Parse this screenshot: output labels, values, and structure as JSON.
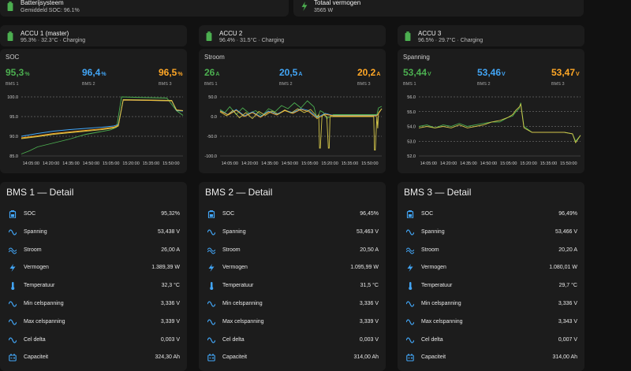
{
  "colors": {
    "bms1": "#4caf50",
    "bms2": "#42a5f5",
    "bms3": "#ffa726",
    "accent_green": "#4caf50",
    "icon_blue": "#42a5f5",
    "card": "#1c1c1c",
    "bg": "#111111",
    "yellow": "#d4c64a"
  },
  "top": {
    "system": {
      "title": "Batterijsysteem",
      "sub": "Gemiddeld SOC: 96.1%",
      "icon": "battery-icon"
    },
    "power": {
      "title": "Totaal vermogen",
      "sub": "3565 W",
      "icon": "lightning-icon"
    }
  },
  "accus": [
    {
      "title": "ACCU 1 (master)",
      "sub": "95.3% · 32.3°C · Charging",
      "icon": "battery-charging-icon"
    },
    {
      "title": "ACCU 2",
      "sub": "96.4% · 31.5°C · Charging",
      "icon": "battery-charging-icon"
    },
    {
      "title": "ACCU 3",
      "sub": "96.5% · 29.7°C · Charging",
      "icon": "battery-charging-icon"
    }
  ],
  "charts": [
    {
      "title": "SOC",
      "stats": [
        {
          "value": "95,3",
          "unit": "%",
          "label": "BMS 1"
        },
        {
          "value": "96,4",
          "unit": "%",
          "label": "BMS 2"
        },
        {
          "value": "96,5",
          "unit": "%",
          "label": "BMS 3"
        }
      ]
    },
    {
      "title": "Stroom",
      "stats": [
        {
          "value": "26",
          "unit": "A",
          "label": "BMS 1"
        },
        {
          "value": "20,5",
          "unit": "A",
          "label": "BMS 2"
        },
        {
          "value": "20,2",
          "unit": "A",
          "label": "BMS 3"
        }
      ]
    },
    {
      "title": "Spanning",
      "stats": [
        {
          "value": "53,44",
          "unit": "V",
          "label": "BMS 1"
        },
        {
          "value": "53,46",
          "unit": "V",
          "label": "BMS 2"
        },
        {
          "value": "53,47",
          "unit": "V",
          "label": "BMS 3"
        }
      ]
    }
  ],
  "chart_data": [
    {
      "type": "line",
      "y_ticks": [
        "100.0",
        "95.0",
        "90.0",
        "85.0"
      ],
      "ylim": [
        85,
        100
      ],
      "x_ticks": [
        "14:05:00",
        "14:20:00",
        "14:35:00",
        "14:50:00",
        "15:05:00",
        "15:20:00",
        "15:35:00",
        "15:50:00"
      ],
      "series": [
        {
          "name": "BMS 1",
          "color": "#4caf50",
          "x": [
            0,
            0.05,
            0.1,
            0.2,
            0.3,
            0.4,
            0.55,
            0.59,
            0.62,
            0.7,
            0.8,
            0.9,
            0.96,
            1
          ],
          "y": [
            85.5,
            86.3,
            87.3,
            88.3,
            89.3,
            90.5,
            91.6,
            92.3,
            100,
            99.9,
            99.8,
            99.7,
            96.5,
            95.3
          ]
        },
        {
          "name": "BMS 2",
          "color": "#42a5f5",
          "x": [
            0,
            0.1,
            0.2,
            0.3,
            0.4,
            0.5,
            0.57,
            0.6,
            0.63,
            0.8,
            0.93,
            0.96,
            1
          ],
          "y": [
            90,
            90.7,
            91.3,
            91.7,
            92,
            92.3,
            92.6,
            93,
            99.2,
            99.1,
            99,
            96.5,
            96.4
          ]
        },
        {
          "name": "BMS 3",
          "color": "#ffa726",
          "x": [
            0,
            0.1,
            0.2,
            0.3,
            0.4,
            0.5,
            0.57,
            0.6,
            0.63,
            0.8,
            0.93,
            0.96,
            1
          ],
          "y": [
            89.6,
            90.1,
            90.7,
            91.1,
            91.5,
            91.9,
            92.3,
            92.8,
            99.2,
            99.1,
            99,
            96.7,
            96.5
          ]
        },
        {
          "name": "",
          "color": "#d4c64a",
          "x": [
            0,
            0.1,
            0.2,
            0.3,
            0.4,
            0.5,
            0.57,
            0.6,
            0.63,
            0.8,
            0.93,
            0.96,
            1
          ],
          "y": [
            89.4,
            89.9,
            90.5,
            90.9,
            91.3,
            91.7,
            92.1,
            92.6,
            99.3,
            99.2,
            99.1,
            96.6,
            96.5
          ]
        }
      ]
    },
    {
      "type": "line",
      "y_ticks": [
        "50.0",
        "0.0",
        "-50.0",
        "-100.0"
      ],
      "ylim": [
        -100,
        50
      ],
      "x_ticks": [
        "14:05:00",
        "14:20:00",
        "14:35:00",
        "14:50:00",
        "15:05:00",
        "15:20:00",
        "15:35:00",
        "15:50:00"
      ],
      "series": [
        {
          "name": "BMS 1",
          "color": "#4caf50",
          "x": [
            0,
            0.03,
            0.06,
            0.1,
            0.14,
            0.18,
            0.22,
            0.26,
            0.3,
            0.34,
            0.38,
            0.42,
            0.46,
            0.5,
            0.54,
            0.58,
            0.6,
            0.62,
            0.64,
            0.66,
            0.7,
            0.8,
            0.9,
            0.97,
            0.98,
            1
          ],
          "y": [
            18,
            10,
            25,
            5,
            22,
            8,
            15,
            2,
            20,
            12,
            28,
            20,
            35,
            22,
            40,
            25,
            -5,
            15,
            10,
            -5,
            5,
            5,
            5,
            5,
            22,
            26
          ]
        },
        {
          "name": "BMS 2",
          "color": "#42a5f5",
          "x": [
            0,
            0.05,
            0.1,
            0.15,
            0.2,
            0.25,
            0.3,
            0.35,
            0.4,
            0.45,
            0.5,
            0.55,
            0.6,
            0.65,
            0.7,
            0.8,
            0.9,
            0.97,
            1
          ],
          "y": [
            15,
            5,
            18,
            2,
            12,
            0,
            14,
            6,
            16,
            10,
            20,
            15,
            -2,
            8,
            3,
            3,
            3,
            3,
            20
          ]
        },
        {
          "name": "BMS 3",
          "color": "#ffa726",
          "x": [
            0,
            0.05,
            0.1,
            0.15,
            0.2,
            0.25,
            0.3,
            0.35,
            0.4,
            0.45,
            0.5,
            0.55,
            0.6,
            0.65,
            0.7,
            0.8,
            0.9,
            0.97,
            1
          ],
          "y": [
            14,
            4,
            16,
            0,
            10,
            -2,
            12,
            4,
            15,
            8,
            18,
            12,
            -5,
            6,
            2,
            2,
            2,
            2,
            20
          ]
        },
        {
          "name": "",
          "color": "#d4c64a",
          "x": [
            0,
            0.04,
            0.08,
            0.12,
            0.16,
            0.2,
            0.24,
            0.28,
            0.32,
            0.36,
            0.4,
            0.44,
            0.48,
            0.52,
            0.56,
            0.6,
            0.61,
            0.615,
            0.62,
            0.63,
            0.64,
            0.66,
            0.67,
            0.675,
            0.68,
            0.7,
            0.8,
            0.9,
            0.95,
            0.955,
            0.96,
            0.97,
            0.975,
            0.98,
            1
          ],
          "y": [
            12,
            2,
            16,
            -3,
            10,
            -5,
            13,
            3,
            14,
            6,
            17,
            9,
            20,
            10,
            18,
            0,
            5,
            -80,
            -80,
            0,
            5,
            0,
            -80,
            -80,
            0,
            0,
            0,
            0,
            0,
            -85,
            -85,
            0,
            -30,
            10,
            20
          ]
        }
      ]
    },
    {
      "type": "line",
      "y_ticks": [
        "56.0",
        "55.0",
        "54.0",
        "53.0",
        "52.0"
      ],
      "ylim": [
        52,
        56
      ],
      "x_ticks": [
        "14:05:00",
        "14:20:00",
        "14:35:00",
        "14:50:00",
        "15:05:00",
        "15:20:00",
        "15:35:00",
        "15:50:00"
      ],
      "series": [
        {
          "name": "BMS 1",
          "color": "#4caf50",
          "x": [
            0,
            0.05,
            0.1,
            0.15,
            0.2,
            0.25,
            0.3,
            0.35,
            0.4,
            0.45,
            0.5,
            0.55,
            0.58,
            0.6,
            0.62,
            0.63,
            0.65,
            0.7,
            0.8,
            0.9,
            0.95,
            0.97,
            1
          ],
          "y": [
            54.0,
            54.1,
            53.9,
            54.1,
            54.0,
            54.2,
            54.0,
            54.1,
            54.2,
            54.3,
            54.3,
            54.6,
            54.7,
            55.0,
            55.2,
            55.6,
            54.0,
            53.6,
            53.6,
            53.6,
            53.5,
            53.0,
            53.4
          ]
        },
        {
          "name": "",
          "color": "#d4c64a",
          "x": [
            0,
            0.05,
            0.1,
            0.15,
            0.2,
            0.25,
            0.3,
            0.35,
            0.4,
            0.45,
            0.5,
            0.55,
            0.58,
            0.6,
            0.62,
            0.63,
            0.65,
            0.7,
            0.8,
            0.9,
            0.95,
            0.97,
            1
          ],
          "y": [
            53.9,
            54.0,
            53.9,
            54.0,
            53.9,
            54.1,
            53.9,
            54.0,
            54.1,
            54.3,
            54.4,
            54.6,
            54.8,
            55.1,
            55.3,
            55.5,
            53.9,
            53.6,
            53.6,
            53.6,
            53.5,
            52.9,
            53.4
          ]
        }
      ]
    }
  ],
  "details": [
    {
      "title": "BMS 1 — Detail",
      "rows": [
        {
          "label": "SOC",
          "value": "95,32%",
          "icon": "battery-icon"
        },
        {
          "label": "Spanning",
          "value": "53,438 V",
          "icon": "sine-wave-icon"
        },
        {
          "label": "Stroom",
          "value": "26,00 A",
          "icon": "current-wave-icon"
        },
        {
          "label": "Vermogen",
          "value": "1.389,39 W",
          "icon": "lightning-icon"
        },
        {
          "label": "Temperatuur",
          "value": "32,3 °C",
          "icon": "thermometer-icon"
        },
        {
          "label": "Min celspanning",
          "value": "3,336 V",
          "icon": "sine-wave-icon"
        },
        {
          "label": "Max celspanning",
          "value": "3,339 V",
          "icon": "sine-wave-icon"
        },
        {
          "label": "Cel delta",
          "value": "0,003 V",
          "icon": "sine-wave-icon"
        },
        {
          "label": "Capaciteit",
          "value": "324,30 Ah",
          "icon": "battery-capacity-icon"
        }
      ]
    },
    {
      "title": "BMS 2 — Detail",
      "rows": [
        {
          "label": "SOC",
          "value": "96,45%",
          "icon": "battery-icon"
        },
        {
          "label": "Spanning",
          "value": "53,463 V",
          "icon": "sine-wave-icon"
        },
        {
          "label": "Stroom",
          "value": "20,50 A",
          "icon": "current-wave-icon"
        },
        {
          "label": "Vermogen",
          "value": "1.095,99 W",
          "icon": "lightning-icon"
        },
        {
          "label": "Temperatuur",
          "value": "31,5 °C",
          "icon": "thermometer-icon"
        },
        {
          "label": "Min celspanning",
          "value": "3,336 V",
          "icon": "sine-wave-icon"
        },
        {
          "label": "Max celspanning",
          "value": "3,339 V",
          "icon": "sine-wave-icon"
        },
        {
          "label": "Cel delta",
          "value": "0,003 V",
          "icon": "sine-wave-icon"
        },
        {
          "label": "Capaciteit",
          "value": "314,00 Ah",
          "icon": "battery-capacity-icon"
        }
      ]
    },
    {
      "title": "BMS 3 — Detail",
      "rows": [
        {
          "label": "SOC",
          "value": "96,49%",
          "icon": "battery-icon"
        },
        {
          "label": "Spanning",
          "value": "53,466 V",
          "icon": "sine-wave-icon"
        },
        {
          "label": "Stroom",
          "value": "20,20 A",
          "icon": "current-wave-icon"
        },
        {
          "label": "Vermogen",
          "value": "1.080,01 W",
          "icon": "lightning-icon"
        },
        {
          "label": "Temperatuur",
          "value": "29,7 °C",
          "icon": "thermometer-icon"
        },
        {
          "label": "Min celspanning",
          "value": "3,336 V",
          "icon": "sine-wave-icon"
        },
        {
          "label": "Max celspanning",
          "value": "3,343 V",
          "icon": "sine-wave-icon"
        },
        {
          "label": "Cel delta",
          "value": "0,007 V",
          "icon": "sine-wave-icon"
        },
        {
          "label": "Capaciteit",
          "value": "314,00 Ah",
          "icon": "battery-capacity-icon"
        }
      ]
    }
  ]
}
